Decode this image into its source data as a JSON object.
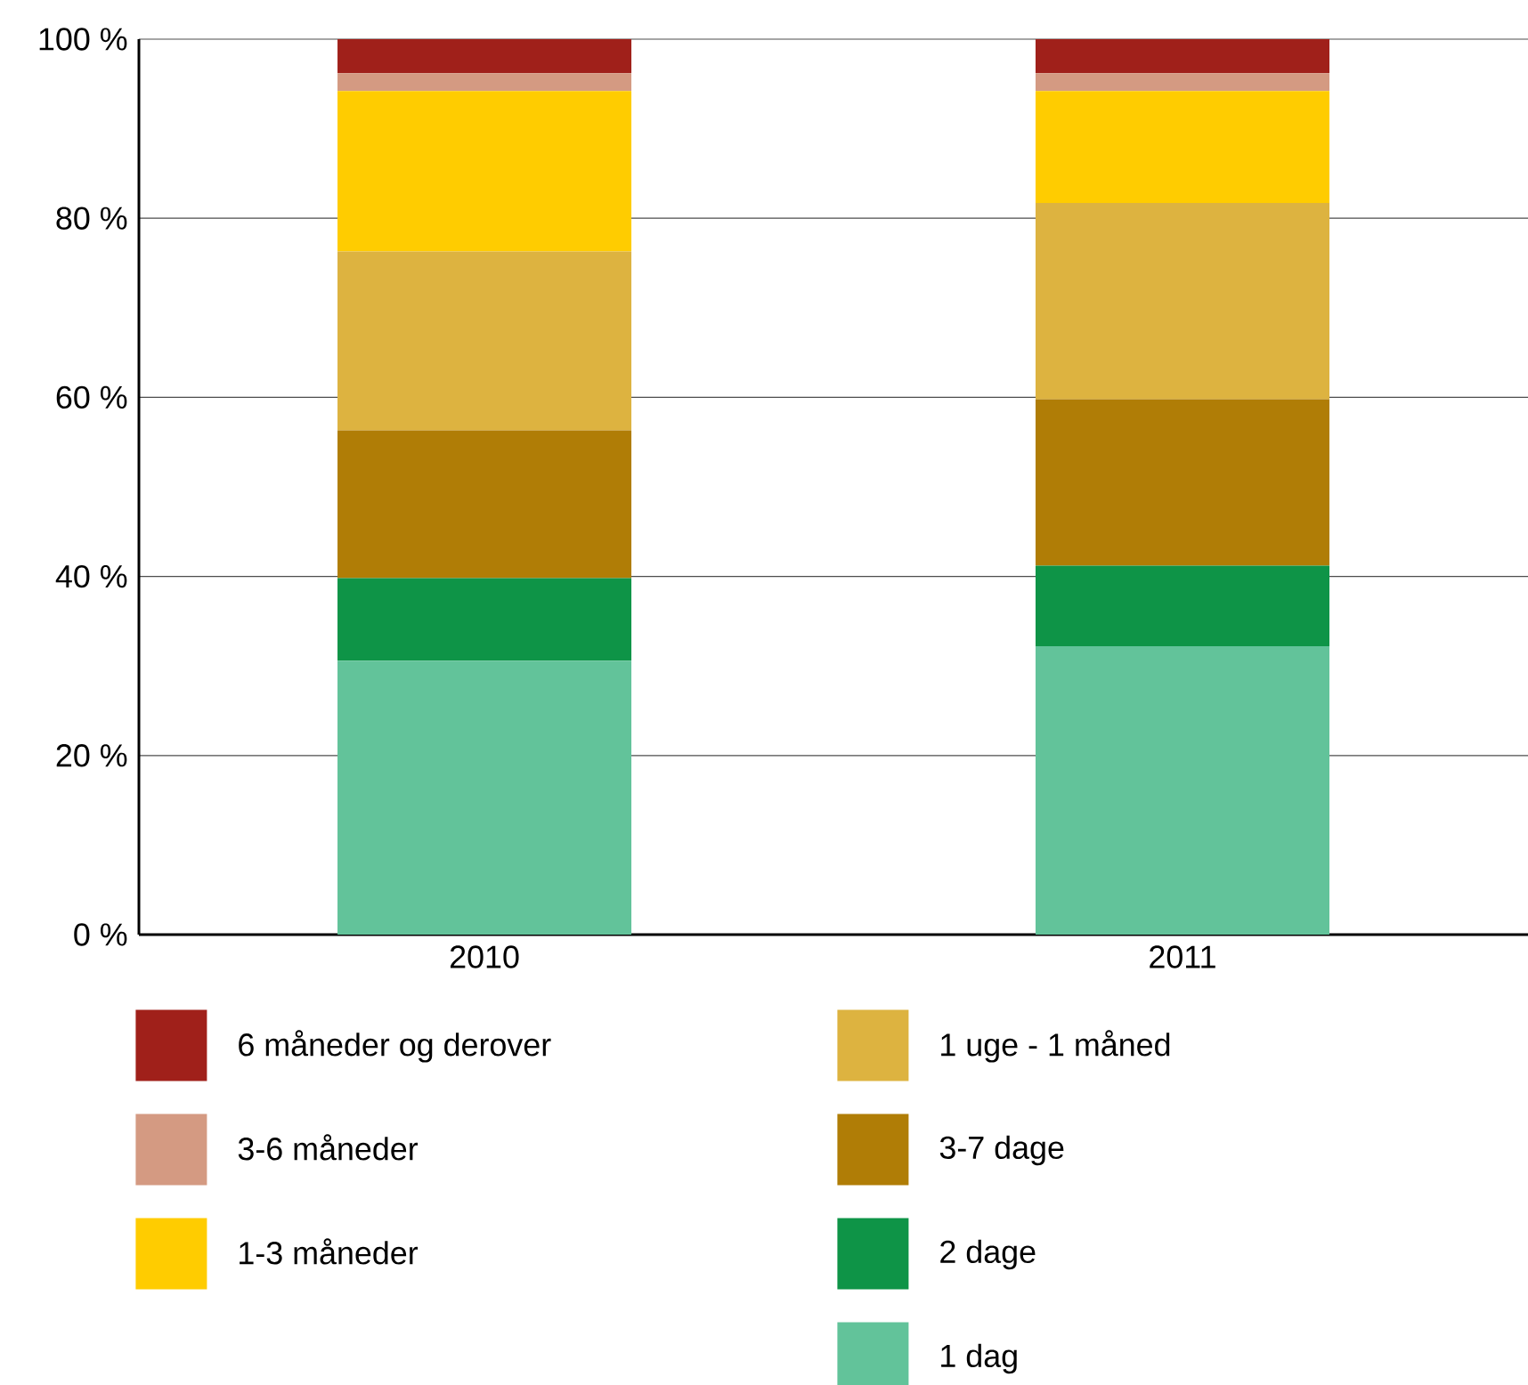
{
  "chart_data": {
    "type": "bar",
    "stacked": true,
    "categories": [
      "2010",
      "2011"
    ],
    "series": [
      {
        "name": "1 dag",
        "color": "#62c39a",
        "values": [
          30.6,
          32.2
        ]
      },
      {
        "name": "2 dage",
        "color": "#0e9447",
        "values": [
          9.2,
          9.0
        ]
      },
      {
        "name": "3-7 dage",
        "color": "#b07d06",
        "values": [
          16.5,
          18.6
        ]
      },
      {
        "name": "1 uge - 1 måned",
        "color": "#ddb340",
        "values": [
          20.0,
          21.9
        ]
      },
      {
        "name": "1-3 måneder",
        "color": "#ffcc00",
        "values": [
          17.9,
          12.5
        ]
      },
      {
        "name": "3-6 måneder",
        "color": "#d49a82",
        "values": [
          2.0,
          2.0
        ]
      },
      {
        "name": "6 måneder og derover",
        "color": "#a0201a",
        "values": [
          3.8,
          3.8
        ]
      }
    ],
    "ylim": [
      0,
      100
    ],
    "yticks": [
      {
        "value": 0,
        "label": "0 %"
      },
      {
        "value": 20,
        "label": "20 %"
      },
      {
        "value": 40,
        "label": "40 %"
      },
      {
        "value": 60,
        "label": "60 %"
      },
      {
        "value": 80,
        "label": "80 %"
      },
      {
        "value": 100,
        "label": "100 %"
      }
    ],
    "grid": "y",
    "legend": "bottom"
  }
}
